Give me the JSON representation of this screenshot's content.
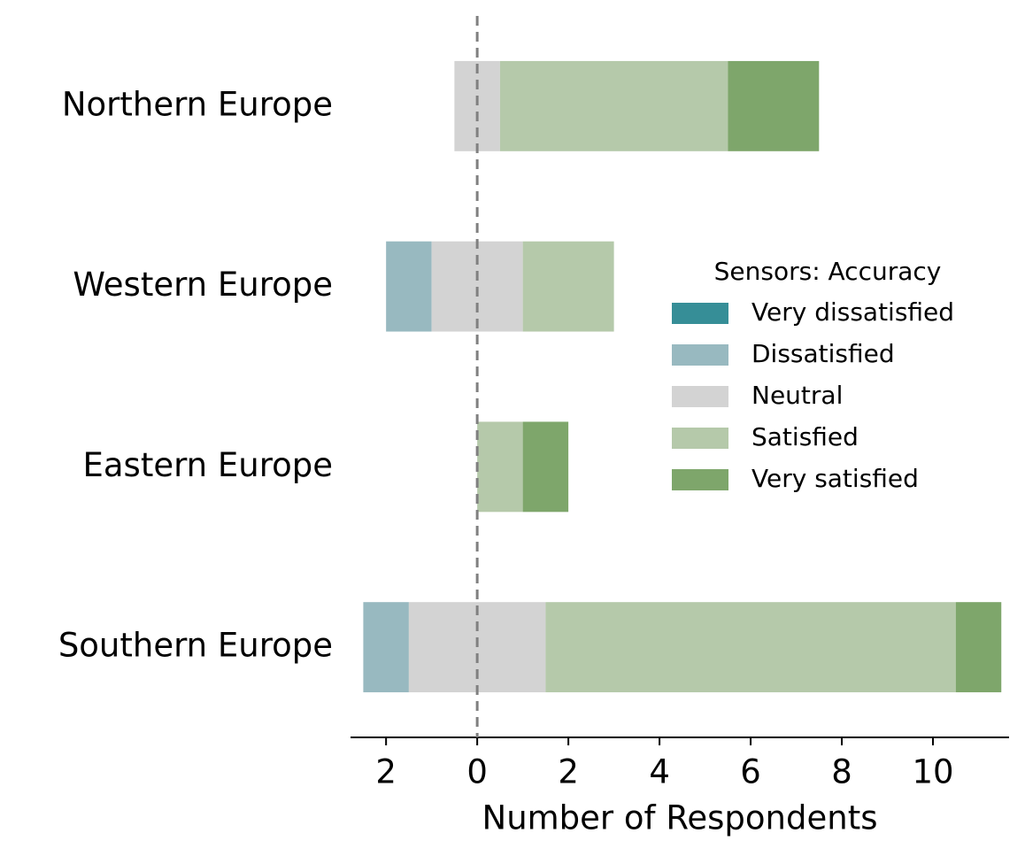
{
  "chart_data": {
    "type": "diverging_bar",
    "categories": [
      "Northern Europe",
      "Western Europe",
      "Eastern Europe",
      "Southern Europe"
    ],
    "series": [
      {
        "name": "Very dissatisfied",
        "color": "#368e97",
        "values": [
          0,
          0,
          0,
          0
        ]
      },
      {
        "name": "Dissatisfied",
        "color": "#98b9c0",
        "values": [
          0,
          1,
          0,
          1
        ]
      },
      {
        "name": "Neutral",
        "color": "#d3d3d3",
        "values": [
          1,
          2,
          0,
          3
        ]
      },
      {
        "name": "Satisfied",
        "color": "#b5c9aa",
        "values": [
          5,
          2,
          1,
          9
        ]
      },
      {
        "name": "Very satisfied",
        "color": "#7ea66b",
        "values": [
          2,
          0,
          1,
          1
        ]
      }
    ],
    "xlabel": "Number of Respondents",
    "legend_title": "Sensors: Accuracy",
    "xlim": [
      -2.78,
      11.67
    ],
    "xticks": [
      {
        "value": -2,
        "label": "2"
      },
      0,
      2,
      4,
      6,
      8,
      10
    ]
  }
}
